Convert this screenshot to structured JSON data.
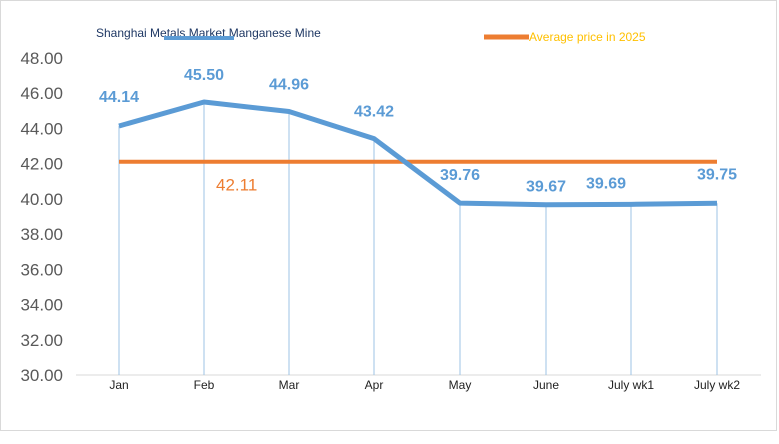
{
  "chart_data": {
    "type": "line",
    "categories": [
      "Jan",
      "Feb",
      "Mar",
      "Apr",
      "May",
      "June",
      "July wk1",
      "July wk2"
    ],
    "series": [
      {
        "name": "Shanghai Metals Market Manganese Mine",
        "values": [
          44.14,
          45.5,
          44.96,
          43.42,
          39.76,
          39.67,
          39.69,
          39.75
        ],
        "labels": [
          "44.14",
          "45.50",
          "44.96",
          "43.42",
          "39.76",
          "39.67",
          "39.69",
          "39.75"
        ],
        "color": "#5b9bd5"
      },
      {
        "name": "Average price in 2025",
        "values": [
          42.11,
          42.11,
          42.11,
          42.11,
          42.11,
          42.11,
          42.11,
          42.11
        ],
        "label": "42.11",
        "color": "#ed7d31"
      }
    ],
    "ylim": [
      30,
      48
    ],
    "yticks": [
      "30.00",
      "32.00",
      "34.00",
      "36.00",
      "38.00",
      "40.00",
      "42.00",
      "44.00",
      "46.00",
      "48.00"
    ],
    "grid": "vertical drop lines",
    "legend_position": "top",
    "title": "",
    "xlabel": "",
    "ylabel": ""
  }
}
